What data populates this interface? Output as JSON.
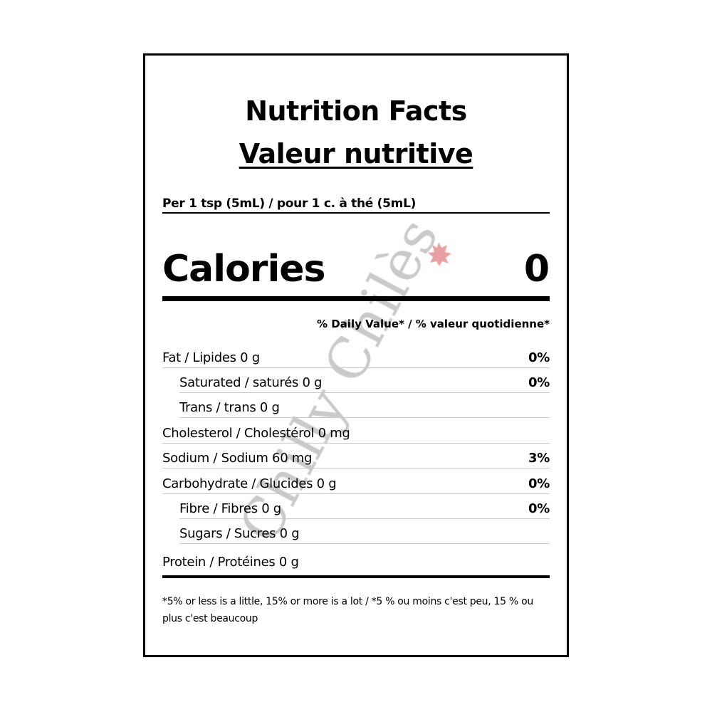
{
  "title_en": "Nutrition Facts",
  "title_fr": "Valeur nutritive",
  "serving": "Per 1 tsp (5mL) / pour 1 c. à thé (5mL)",
  "calories": {
    "label": "Calories",
    "value": "0"
  },
  "daily_value_header": "% Daily Value* / % valeur quotidienne*",
  "nutrients": [
    {
      "label": "Fat / Lipides 0 g",
      "pct": "0%",
      "indent": false
    },
    {
      "label": "Saturated / saturés 0 g",
      "pct": "0%",
      "indent": true
    },
    {
      "label": "Trans / trans 0 g",
      "pct": "",
      "indent": true
    },
    {
      "label": "Cholesterol / Cholestérol 0 mg",
      "pct": "",
      "indent": false
    },
    {
      "label": "Sodium / Sodium 60 mg",
      "pct": "3%",
      "indent": false
    },
    {
      "label": "Carbohydrate / Glucides 0 g",
      "pct": "0%",
      "indent": false
    },
    {
      "label": "Fibre / Fibres 0 g",
      "pct": "0%",
      "indent": true
    },
    {
      "label": "Sugars / Sucres 0 g",
      "pct": "",
      "indent": true
    },
    {
      "label": "Protein / Protéines 0 g",
      "pct": "",
      "indent": false
    }
  ],
  "footnote": "*5% or less is a little, 15% or more is a lot / *5 % ou moins c'est peu, 15 % ou plus c'est beaucoup",
  "watermark": {
    "text": "Chilly Chilès",
    "text_color": "#b8b8b8",
    "leaf_color": "#e8a0a0"
  }
}
